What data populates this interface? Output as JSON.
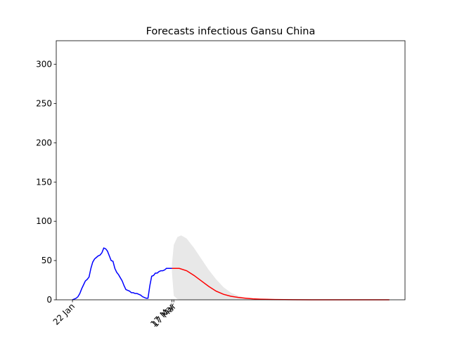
{
  "chart_data": {
    "type": "line",
    "title": "Forecasts infectious Gansu China",
    "xlim": [
      -8.8,
      180.5
    ],
    "ylim": [
      0,
      330
    ],
    "yticks": [
      0,
      50,
      100,
      150,
      200,
      250,
      300
    ],
    "xticks": [
      {
        "value": 0,
        "label": "22 Jan"
      },
      {
        "value": 54,
        "label": "17 Mar"
      },
      {
        "value": 55,
        "label": "17 Mar"
      }
    ],
    "band": {
      "color": "#e8e8e8",
      "x": [
        54,
        55,
        57,
        59,
        62,
        66,
        70,
        74,
        78,
        82,
        86,
        90,
        94,
        98
      ],
      "lower": [
        35,
        5,
        1,
        0,
        0,
        0,
        0,
        0,
        0,
        0,
        0,
        0,
        0,
        0
      ],
      "upper": [
        45,
        70,
        80,
        82,
        78,
        66,
        52,
        38,
        26,
        16,
        9,
        5,
        2,
        1
      ]
    },
    "series": [
      {
        "color": "#0000ff",
        "x": [
          0,
          1,
          2,
          3,
          4,
          5,
          6,
          7,
          8,
          9,
          10,
          11,
          12,
          13,
          14,
          15,
          16,
          17,
          18,
          19,
          20,
          21,
          22,
          23,
          24,
          25,
          26,
          27,
          28,
          29,
          30,
          31,
          32,
          33,
          34,
          35,
          36,
          37,
          38,
          39,
          40,
          41,
          42,
          43,
          44,
          45,
          46,
          47,
          48,
          49,
          50,
          51,
          52,
          53,
          54
        ],
        "values": [
          0,
          1,
          2,
          4,
          8,
          14,
          19,
          24,
          26,
          29,
          40,
          48,
          52,
          54,
          56,
          57,
          60,
          66,
          65,
          62,
          56,
          50,
          49,
          40,
          35,
          32,
          28,
          24,
          18,
          13,
          12,
          11,
          9,
          9,
          8,
          8,
          7,
          6,
          4,
          3,
          2,
          2,
          18,
          30,
          31,
          34,
          34,
          36,
          37,
          37,
          38,
          40,
          40,
          40,
          40
        ]
      },
      {
        "color": "#ff0000",
        "x": [
          54,
          58,
          62,
          66,
          70,
          74,
          78,
          82,
          86,
          90,
          94,
          98,
          102,
          110,
          120,
          130,
          172
        ],
        "values": [
          40,
          40,
          37,
          31,
          24,
          17,
          11,
          7,
          4.5,
          3,
          2,
          1.2,
          0.8,
          0.3,
          0.1,
          0,
          0
        ]
      }
    ]
  }
}
